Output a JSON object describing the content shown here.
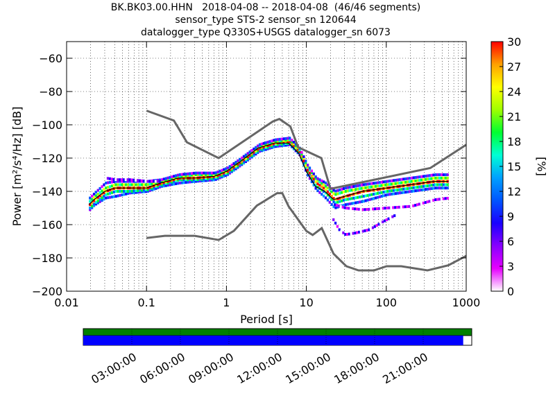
{
  "header": {
    "title_line1": "BK.BK03.00.HHN   2018-04-08 -- 2018-04-08  (46/46 segments)",
    "title_line2": "sensor_type STS-2 sensor_sn 120644",
    "title_line3": "datalogger_type Q330S+USGS datalogger_sn 6073"
  },
  "chart_data": {
    "type": "heatmap",
    "xlabel": "Period [s]",
    "ylabel": "Power [m²/s⁴/Hz] [dB]",
    "x_scale": "log",
    "xlim": [
      0.01,
      1000
    ],
    "ylim": [
      -200,
      -50
    ],
    "x_ticks": [
      0.01,
      0.1,
      1,
      10,
      100,
      1000
    ],
    "x_tick_labels": [
      "0.01",
      "0.1",
      "1",
      "10",
      "100",
      "1000"
    ],
    "y_ticks": [
      -200,
      -180,
      -160,
      -140,
      -120,
      -100,
      -80,
      -60
    ],
    "y_tick_labels": [
      "−200",
      "−180",
      "−160",
      "−140",
      "−120",
      "−100",
      "−80",
      "−60"
    ],
    "grid": true,
    "colorbar": {
      "label": "[%]",
      "range": [
        0,
        30
      ],
      "ticks": [
        "0",
        "3",
        "6",
        "9",
        "12",
        "15",
        "18",
        "21",
        "24",
        "27",
        "30"
      ],
      "colormap": [
        "#ffffff",
        "#e600ff",
        "#8800ff",
        "#1a00ff",
        "#0055ff",
        "#00a0ff",
        "#00ffd5",
        "#00ff30",
        "#a0ff00",
        "#ffff00",
        "#ffa000",
        "#ff0000"
      ]
    },
    "model_lines": {
      "color": "#666666",
      "nhnm": {
        "x": [
          0.1,
          0.22,
          0.32,
          0.8,
          3.8,
          4.6,
          6.3,
          7.9,
          15.4,
          20,
          354.8,
          1000
        ],
        "y": [
          -91.5,
          -97.4,
          -110.5,
          -120,
          -98,
          -96.5,
          -101,
          -113.5,
          -120,
          -138.5,
          -126,
          -112
        ]
      },
      "nlnm": {
        "x": [
          0.1,
          0.17,
          0.4,
          0.8,
          1.24,
          2.4,
          4.3,
          5,
          6,
          10,
          12,
          15.6,
          21.9,
          31.6,
          45,
          70,
          101,
          154,
          328,
          600,
          1000
        ],
        "y": [
          -168,
          -166.7,
          -166.7,
          -169.2,
          -163.7,
          -148.6,
          -141.1,
          -141.1,
          -149,
          -163.8,
          -166.2,
          -162.1,
          -177.5,
          -185,
          -187.5,
          -187.5,
          -185,
          -185,
          -187.5,
          -184.4,
          -178.8
        ]
      }
    },
    "mode_line": {
      "color": "#000000",
      "x": [
        0.019,
        0.022,
        0.03,
        0.04,
        0.06,
        0.1,
        0.15,
        0.25,
        0.4,
        0.7,
        1,
        1.5,
        2.5,
        4,
        6,
        8,
        10,
        13,
        17,
        22,
        30,
        50,
        100,
        200,
        400,
        600
      ],
      "y": [
        -148,
        -145,
        -140,
        -138,
        -138,
        -138,
        -135,
        -132,
        -132,
        -131,
        -128,
        -122,
        -114,
        -111,
        -111,
        -117,
        -128,
        -137,
        -140,
        -145,
        -143,
        -140,
        -138,
        -136,
        -134,
        -134
      ]
    },
    "density_bands": [
      {
        "x": [
          0.019,
          0.022,
          0.03,
          0.04,
          0.06,
          0.1,
          0.15,
          0.25,
          0.4,
          0.7,
          1,
          1.5,
          2.5,
          4,
          6,
          8,
          10,
          13,
          17,
          22,
          30,
          50,
          100,
          200,
          400,
          600
        ],
        "y": [
          -151,
          -148,
          -144,
          -143,
          -141,
          -140,
          -137,
          -135,
          -134,
          -133,
          -130,
          -124,
          -116,
          -113,
          -112,
          -118,
          -130,
          -139,
          -144,
          -150,
          -148,
          -146,
          -142,
          -140,
          -138,
          -138
        ],
        "pct": 10
      },
      {
        "x": [
          0.019,
          0.022,
          0.03,
          0.04,
          0.06,
          0.1,
          0.15,
          0.25,
          0.4,
          0.7,
          1,
          1.5,
          2.5,
          4,
          6,
          8,
          10,
          13,
          17,
          22,
          30,
          50,
          100,
          200,
          400,
          600
        ],
        "y": [
          -150,
          -147,
          -142,
          -140,
          -140,
          -139,
          -136,
          -133,
          -133,
          -132,
          -129,
          -123,
          -115,
          -112,
          -111,
          -117,
          -128,
          -137,
          -141,
          -147,
          -145,
          -143,
          -140,
          -138,
          -136,
          -136
        ],
        "pct": 16
      },
      {
        "x": [
          0.019,
          0.022,
          0.03,
          0.04,
          0.06,
          0.1,
          0.15,
          0.25,
          0.4,
          0.7,
          1,
          1.5,
          2.5,
          4,
          6,
          8,
          10,
          13,
          17,
          22,
          30,
          50,
          100,
          200,
          400,
          600
        ],
        "y": [
          -148,
          -145,
          -140,
          -138,
          -138,
          -138,
          -135,
          -132,
          -132,
          -131,
          -128,
          -122,
          -114,
          -111,
          -110,
          -116,
          -127,
          -135,
          -139,
          -145,
          -143,
          -140,
          -138,
          -136,
          -134,
          -134
        ],
        "pct": 29
      },
      {
        "x": [
          0.019,
          0.022,
          0.03,
          0.04,
          0.06,
          0.1,
          0.15,
          0.25,
          0.4,
          0.7,
          1,
          1.5,
          2.5,
          4,
          6,
          8,
          10,
          13,
          17,
          22,
          30,
          50,
          100,
          200,
          400,
          600
        ],
        "y": [
          -146,
          -143,
          -138,
          -136,
          -136,
          -136,
          -134,
          -131,
          -130,
          -130,
          -127,
          -121,
          -113,
          -110,
          -109,
          -115,
          -125,
          -133,
          -137,
          -142,
          -140,
          -138,
          -136,
          -134,
          -132,
          -132
        ],
        "pct": 20
      },
      {
        "x": [
          0.019,
          0.022,
          0.03,
          0.04,
          0.06,
          0.1,
          0.15,
          0.25,
          0.4,
          0.7,
          1,
          1.5,
          2.5,
          4,
          6,
          8,
          10,
          13,
          17,
          22,
          30,
          50,
          100,
          200,
          400,
          600
        ],
        "y": [
          -144,
          -141,
          -135,
          -134,
          -134,
          -134,
          -133,
          -130,
          -129,
          -129,
          -126,
          -120,
          -112,
          -109,
          -108,
          -114,
          -124,
          -132,
          -135,
          -140,
          -138,
          -136,
          -134,
          -132,
          -130,
          -130
        ],
        "pct": 8
      },
      {
        "x": [
          0.03,
          0.04,
          0.06,
          0.1,
          0.15
        ],
        "y": [
          -132,
          -133,
          -133,
          -134,
          -134
        ],
        "pct": 5
      },
      {
        "x": [
          20,
          25,
          30,
          40,
          60,
          90,
          130
        ],
        "y": [
          -155,
          -163,
          -166,
          -165,
          -163,
          -158,
          -154
        ],
        "pct": 5
      },
      {
        "x": [
          22,
          30,
          50,
          100,
          200,
          400,
          600
        ],
        "y": [
          -148,
          -150,
          -151,
          -150,
          -149,
          -145,
          -144
        ],
        "pct": 4
      }
    ]
  },
  "timeline": {
    "ticks": [
      "03:00:00",
      "06:00:00",
      "09:00:00",
      "12:00:00",
      "15:00:00",
      "18:00:00",
      "21:00:00"
    ],
    "total_coverage_color": "#008000",
    "segment_coverage_color": "#0000ff",
    "segment_coverage_fraction": 0.978
  }
}
